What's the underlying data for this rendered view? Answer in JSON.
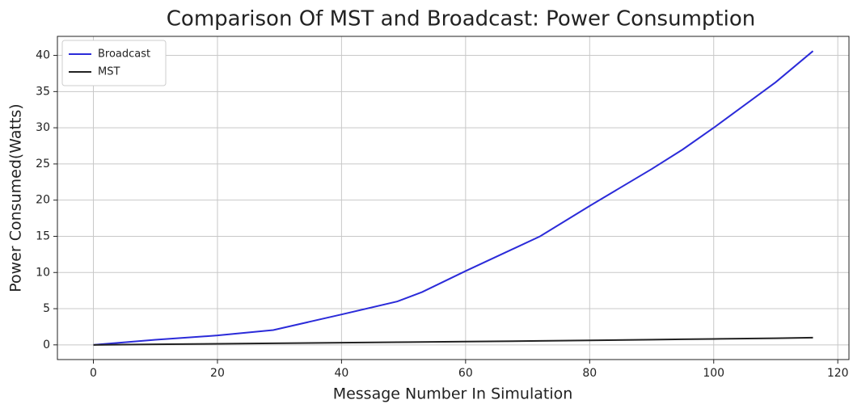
{
  "chart_data": {
    "type": "line",
    "title": "Comparison Of MST and Broadcast: Power Consumption",
    "xlabel": "Message Number In Simulation",
    "ylabel": "Power Consumed(Watts)",
    "x": [
      0,
      10,
      20,
      29,
      40,
      49,
      53,
      60,
      72,
      80,
      90,
      95,
      100,
      110,
      116
    ],
    "series": [
      {
        "name": "Broadcast",
        "color": "#2b2bd9",
        "values": [
          0,
          0.7,
          1.3,
          2.05,
          4.2,
          6,
          7.3,
          10.2,
          15,
          19.2,
          24.3,
          27,
          30,
          36.3,
          40.6
        ]
      },
      {
        "name": "MST",
        "color": "#222222",
        "values": [
          0,
          0.08,
          0.15,
          0.22,
          0.3,
          0.37,
          0.4,
          0.45,
          0.55,
          0.62,
          0.72,
          0.77,
          0.82,
          0.92,
          1.0
        ]
      }
    ],
    "xlim": [
      -5.8,
      121.8
    ],
    "xticks": [
      0,
      20,
      40,
      60,
      80,
      100,
      120
    ],
    "ylim": [
      -2.03,
      42.63
    ],
    "yticks": [
      0,
      5,
      10,
      15,
      20,
      25,
      30,
      35,
      40
    ],
    "grid": true,
    "legend": "upper left"
  }
}
